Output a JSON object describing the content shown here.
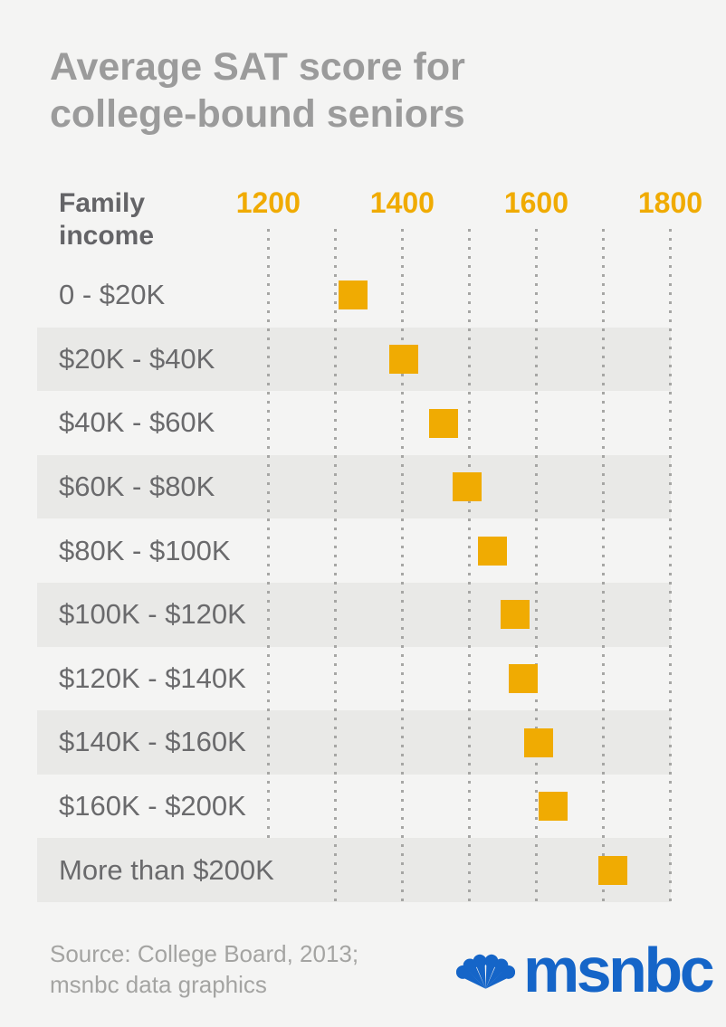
{
  "title": {
    "line1": "Average SAT score for",
    "line2": "college-bound seniors"
  },
  "chart_data": {
    "type": "scatter",
    "title": "Average SAT score for college-bound seniors",
    "row_axis_header": "Family income",
    "categories": [
      "0 - $20K",
      "$20K - $40K",
      "$40K - $60K",
      "$60K - $80K",
      "$80K - $100K",
      "$100K - $120K",
      "$120K - $140K",
      "$140K - $160K",
      "$160K - $200K",
      "More than $200K"
    ],
    "values": [
      1326,
      1402,
      1461,
      1497,
      1535,
      1569,
      1581,
      1604,
      1625,
      1714
    ],
    "x_ticks": [
      1200,
      1400,
      1600,
      1800
    ],
    "gridlines": [
      1200,
      1300,
      1400,
      1500,
      1600,
      1700,
      1800
    ],
    "xlim": [
      1200,
      1800
    ],
    "grid": "vertical-dotted",
    "legend": "none",
    "marker": {
      "shape": "square",
      "color": "#f0ab02"
    },
    "banded_rows": "alternating, starting with second row"
  },
  "footer": {
    "source_line1": "Source: College Board, 2013;",
    "source_line2": "msnbc data graphics",
    "logo_text": "msnbc"
  },
  "colors": {
    "background": "#f4f4f3",
    "row_band": "#e9e9e7",
    "accent_orange": "#f0ab02",
    "title_gray": "#9b9b9b",
    "msnbc_blue": "#1565c8"
  }
}
